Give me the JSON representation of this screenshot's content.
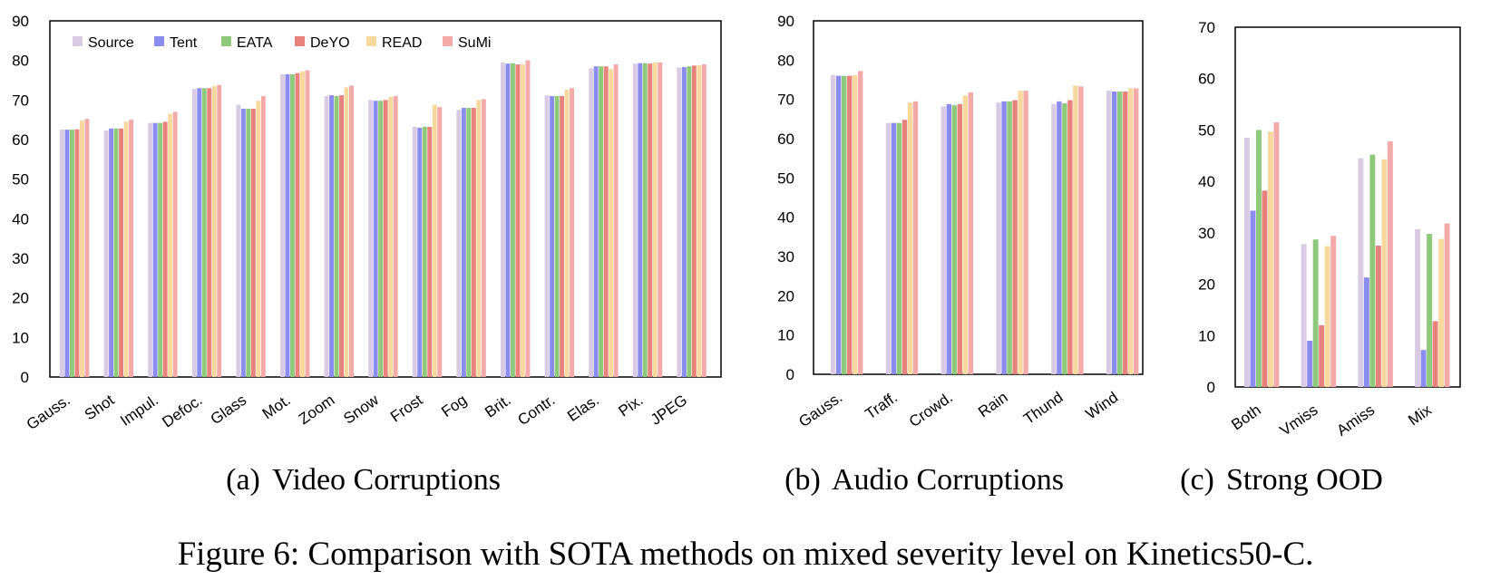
{
  "figure_caption": "Figure 6: Comparison with SOTA methods on mixed severity level on Kinetics50-C.",
  "series_colors": {
    "Source": "#d9cbe3",
    "Tent": "#8b8cf0",
    "EATA": "#8ec97c",
    "DeYO": "#e8827c",
    "READ": "#f7d9a0",
    "SuMi": "#f3aaa8"
  },
  "chart_data": [
    {
      "type": "bar",
      "caption_label": "(a)",
      "caption_title": "Video Corruptions",
      "legend": [
        "Source",
        "Tent",
        "EATA",
        "DeYO",
        "READ",
        "SuMi"
      ],
      "ylim": [
        0,
        90
      ],
      "yticks": [
        0,
        10,
        20,
        30,
        40,
        50,
        60,
        70,
        80,
        90
      ],
      "categories": [
        "Gauss.",
        "Shot",
        "Impul.",
        "Defoc.",
        "Glass",
        "Mot.",
        "Zoom",
        "Snow",
        "Frost",
        "Fog",
        "Brit.",
        "Contr.",
        "Elas.",
        "Pix.",
        "JPEG"
      ],
      "series": [
        {
          "name": "Source",
          "values": [
            62.5,
            62.3,
            64.2,
            72.8,
            68.8,
            76.5,
            71.0,
            70.0,
            63.2,
            67.5,
            79.5,
            71.2,
            78.0,
            79.2,
            78.2
          ]
        },
        {
          "name": "Tent",
          "values": [
            62.5,
            62.8,
            64.2,
            73.0,
            67.8,
            76.5,
            71.2,
            69.8,
            63.0,
            68.0,
            79.2,
            71.0,
            78.5,
            79.3,
            78.3
          ]
        },
        {
          "name": "EATA",
          "values": [
            62.5,
            62.8,
            64.2,
            73.0,
            67.8,
            76.5,
            71.0,
            69.8,
            63.2,
            68.0,
            79.3,
            71.0,
            78.5,
            79.3,
            78.5
          ]
        },
        {
          "name": "DeYO",
          "values": [
            62.6,
            62.8,
            64.5,
            73.0,
            67.8,
            76.8,
            71.2,
            70.0,
            63.2,
            68.0,
            79.0,
            71.0,
            78.5,
            79.2,
            78.7
          ]
        },
        {
          "name": "READ",
          "values": [
            64.8,
            64.5,
            66.5,
            73.5,
            69.8,
            77.2,
            73.2,
            70.8,
            68.8,
            70.0,
            79.0,
            72.6,
            77.8,
            79.5,
            78.8
          ]
        },
        {
          "name": "SuMi",
          "values": [
            65.2,
            65.0,
            67.0,
            73.8,
            71.0,
            77.5,
            73.6,
            71.0,
            68.2,
            70.2,
            80.0,
            73.0,
            79.0,
            79.5,
            79.0
          ]
        }
      ]
    },
    {
      "type": "bar",
      "caption_label": "(b)",
      "caption_title": "Audio Corruptions",
      "ylim": [
        0,
        90
      ],
      "yticks": [
        0,
        10,
        20,
        30,
        40,
        50,
        60,
        70,
        80,
        90
      ],
      "categories": [
        "Gauss.",
        "Traff.",
        "Crowd.",
        "Rain",
        "Thund",
        "Wind"
      ],
      "series": [
        {
          "name": "Source",
          "values": [
            76.2,
            64.0,
            68.2,
            69.2,
            68.8,
            72.2
          ]
        },
        {
          "name": "Tent",
          "values": [
            76.0,
            64.0,
            68.8,
            69.5,
            69.5,
            72.0
          ]
        },
        {
          "name": "EATA",
          "values": [
            76.0,
            64.0,
            68.5,
            69.5,
            69.0,
            72.0
          ]
        },
        {
          "name": "DeYO",
          "values": [
            76.0,
            64.8,
            68.8,
            69.8,
            69.8,
            72.0
          ]
        },
        {
          "name": "READ",
          "values": [
            76.2,
            69.2,
            71.0,
            72.2,
            73.5,
            72.8
          ]
        },
        {
          "name": "SuMi",
          "values": [
            77.2,
            69.5,
            71.8,
            72.2,
            73.3,
            72.8
          ]
        }
      ]
    },
    {
      "type": "bar",
      "caption_label": "(c)",
      "caption_title": "Strong OOD",
      "ylim": [
        0,
        70
      ],
      "yticks": [
        0,
        10,
        20,
        30,
        40,
        50,
        60,
        70
      ],
      "categories": [
        "Both",
        "Vmiss",
        "Amiss",
        "Mix"
      ],
      "series": [
        {
          "name": "Source",
          "values": [
            48.5,
            27.8,
            44.5,
            30.7
          ]
        },
        {
          "name": "Tent",
          "values": [
            34.3,
            9.0,
            21.3,
            7.2
          ]
        },
        {
          "name": "EATA",
          "values": [
            50.0,
            28.7,
            45.2,
            29.8
          ]
        },
        {
          "name": "DeYO",
          "values": [
            38.2,
            12.0,
            27.5,
            12.8
          ]
        },
        {
          "name": "READ",
          "values": [
            49.7,
            27.4,
            44.3,
            28.8
          ]
        },
        {
          "name": "SuMi",
          "values": [
            51.5,
            29.4,
            47.8,
            31.8
          ]
        }
      ]
    }
  ]
}
